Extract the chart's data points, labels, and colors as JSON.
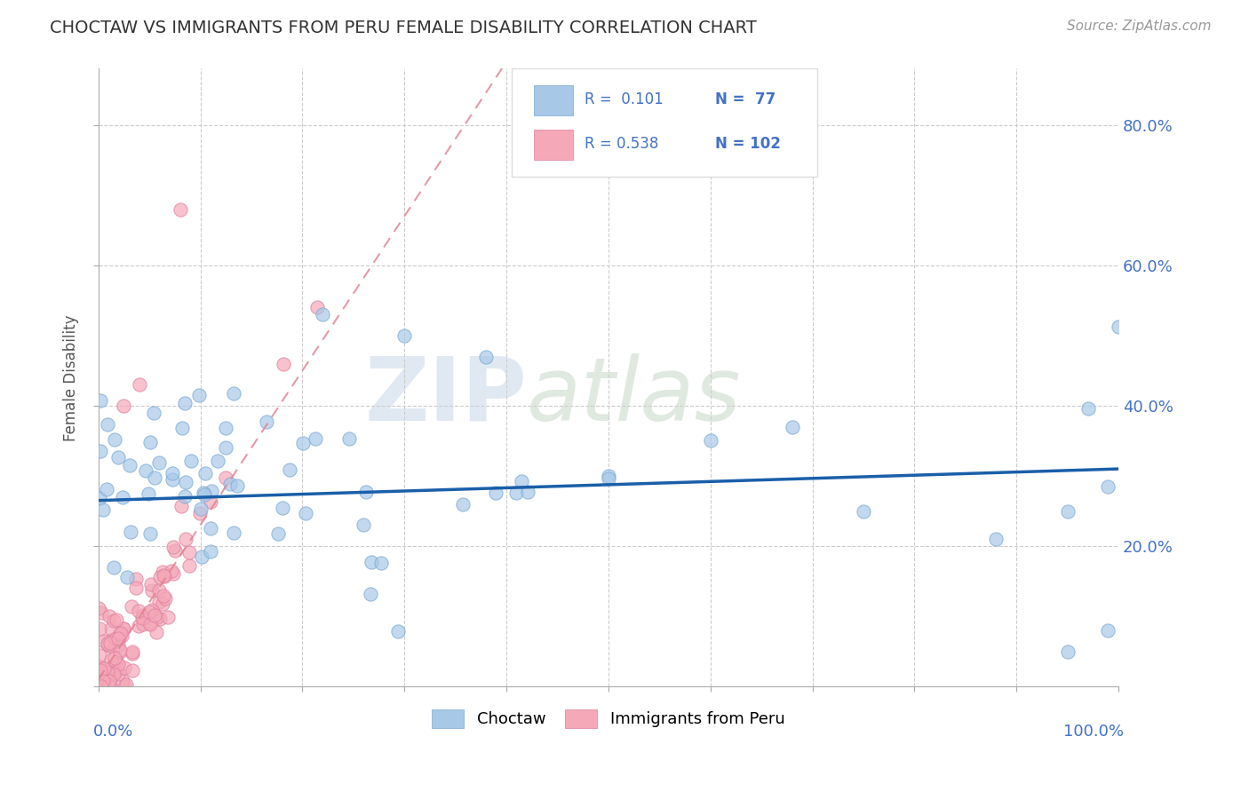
{
  "title": "CHOCTAW VS IMMIGRANTS FROM PERU FEMALE DISABILITY CORRELATION CHART",
  "source": "Source: ZipAtlas.com",
  "ylabel": "Female Disability",
  "choctaw_color": "#a8c8e8",
  "choctaw_edge_color": "#7aaad4",
  "peru_color": "#f4a8b8",
  "peru_edge_color": "#e080a0",
  "choctaw_line_color": "#1a5fa8",
  "peru_line_color": "#e08090",
  "watermark_zip_color": "#c8d8e8",
  "watermark_atlas_color": "#c8d8c8",
  "background_color": "#ffffff",
  "legend_text_color": "#4472c4",
  "legend_box_edge_color": "#dddddd",
  "grid_color": "#cccccc",
  "axis_label_color": "#4472c4",
  "ylabel_color": "#555555",
  "title_color": "#333333",
  "source_color": "#999999"
}
